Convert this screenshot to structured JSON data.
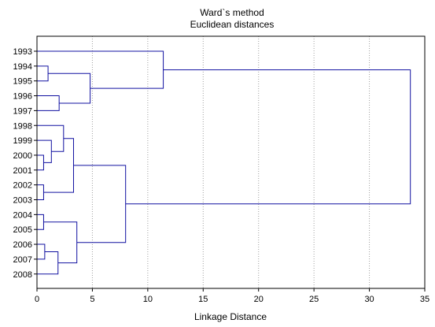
{
  "chart_data": {
    "type": "dendrogram",
    "title_lines": [
      "Ward`s method",
      "Euclidean distances"
    ],
    "xlabel": "Linkage Distance",
    "xlim": [
      0,
      35
    ],
    "xticks": [
      0,
      5,
      10,
      15,
      20,
      25,
      30,
      35
    ],
    "leaves": [
      "1993",
      "1994",
      "1995",
      "1996",
      "1997",
      "1998",
      "1999",
      "2000",
      "2001",
      "2002",
      "2003",
      "2004",
      "2005",
      "2006",
      "2007",
      "2008"
    ],
    "merges": [
      {
        "a": "2000",
        "b": "2001",
        "height": 0.6
      },
      {
        "a": "2002",
        "b": "2003",
        "height": 0.6
      },
      {
        "a": "2004",
        "b": "2005",
        "height": 0.6
      },
      {
        "a": "2006",
        "b": "2007",
        "height": 0.7
      },
      {
        "a": "1994",
        "b": "1995",
        "height": 1.0
      },
      {
        "a": "1999",
        "b": "m1",
        "height": 1.3
      },
      {
        "a": "m4",
        "b": "2008",
        "height": 1.9
      },
      {
        "a": "1996",
        "b": "1997",
        "height": 2.0
      },
      {
        "a": "1998",
        "b": "m6",
        "height": 2.4
      },
      {
        "a": "m9",
        "b": "m2",
        "height": 3.3
      },
      {
        "a": "m3",
        "b": "m7",
        "height": 3.6
      },
      {
        "a": "m5",
        "b": "m8",
        "height": 4.8
      },
      {
        "a": "m10",
        "b": "m11",
        "height": 8.0
      },
      {
        "a": "1993",
        "b": "m12",
        "height": 11.4
      },
      {
        "a": "m14",
        "b": "m13",
        "height": 33.7
      }
    ],
    "grid": true,
    "grid_style": "dotted-vertical",
    "colors": {
      "links": "#1010a0",
      "grid": "#a0a0a0",
      "axes": "#000000"
    }
  }
}
